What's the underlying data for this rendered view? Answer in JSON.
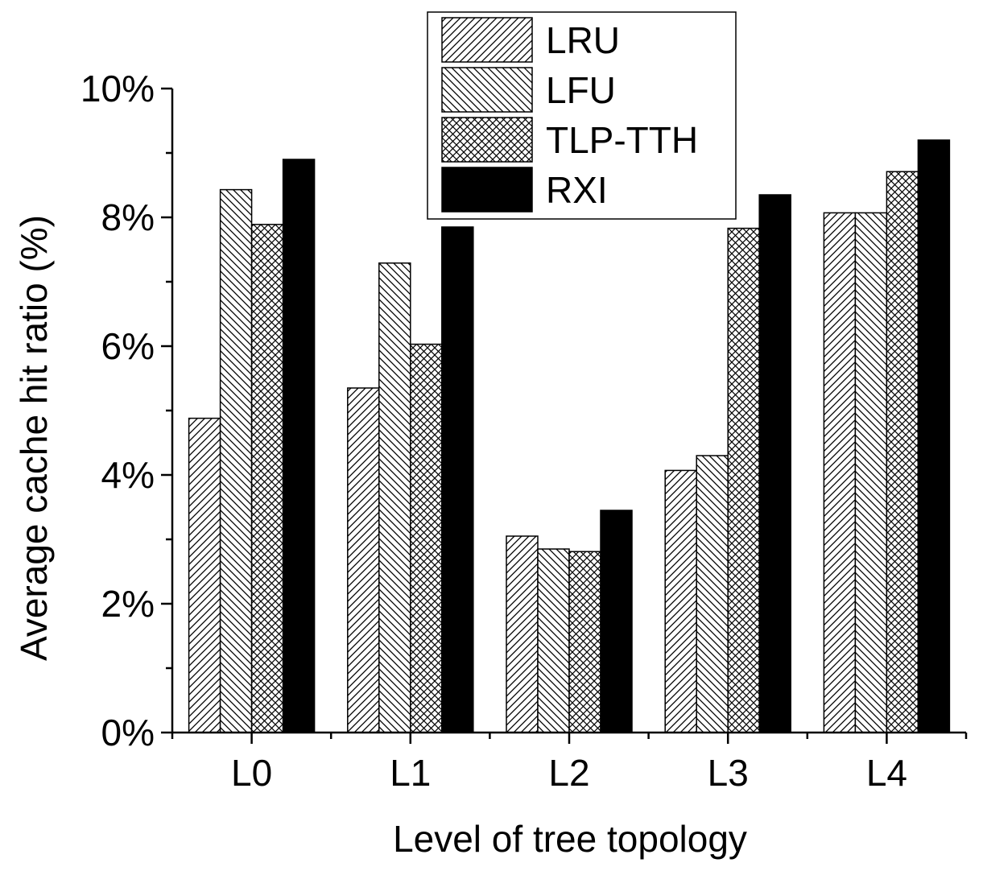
{
  "chart_data": {
    "type": "bar",
    "title": "",
    "xlabel": "Level of tree topology",
    "ylabel": "Average cache hit ratio (%)",
    "categories": [
      "L0",
      "L1",
      "L2",
      "L3",
      "L4"
    ],
    "ylim": [
      0,
      10
    ],
    "yticks": [
      0,
      2,
      4,
      6,
      8,
      10
    ],
    "ytick_labels": [
      "0%",
      "2%",
      "4%",
      "6%",
      "8%",
      "10%"
    ],
    "grid": false,
    "legend_position": "top-center",
    "series": [
      {
        "name": "LRU",
        "pattern": "hatch-forward",
        "values": [
          4.88,
          5.35,
          3.05,
          4.07,
          8.07
        ]
      },
      {
        "name": "LFU",
        "pattern": "hatch-backward",
        "values": [
          8.43,
          7.29,
          2.85,
          4.3,
          8.07
        ]
      },
      {
        "name": "TLP-TTH",
        "pattern": "crosshatch",
        "values": [
          7.89,
          6.03,
          2.81,
          7.83,
          8.71
        ]
      },
      {
        "name": "RXI",
        "pattern": "solid-black",
        "values": [
          8.9,
          7.85,
          3.45,
          8.35,
          9.2
        ]
      }
    ]
  }
}
